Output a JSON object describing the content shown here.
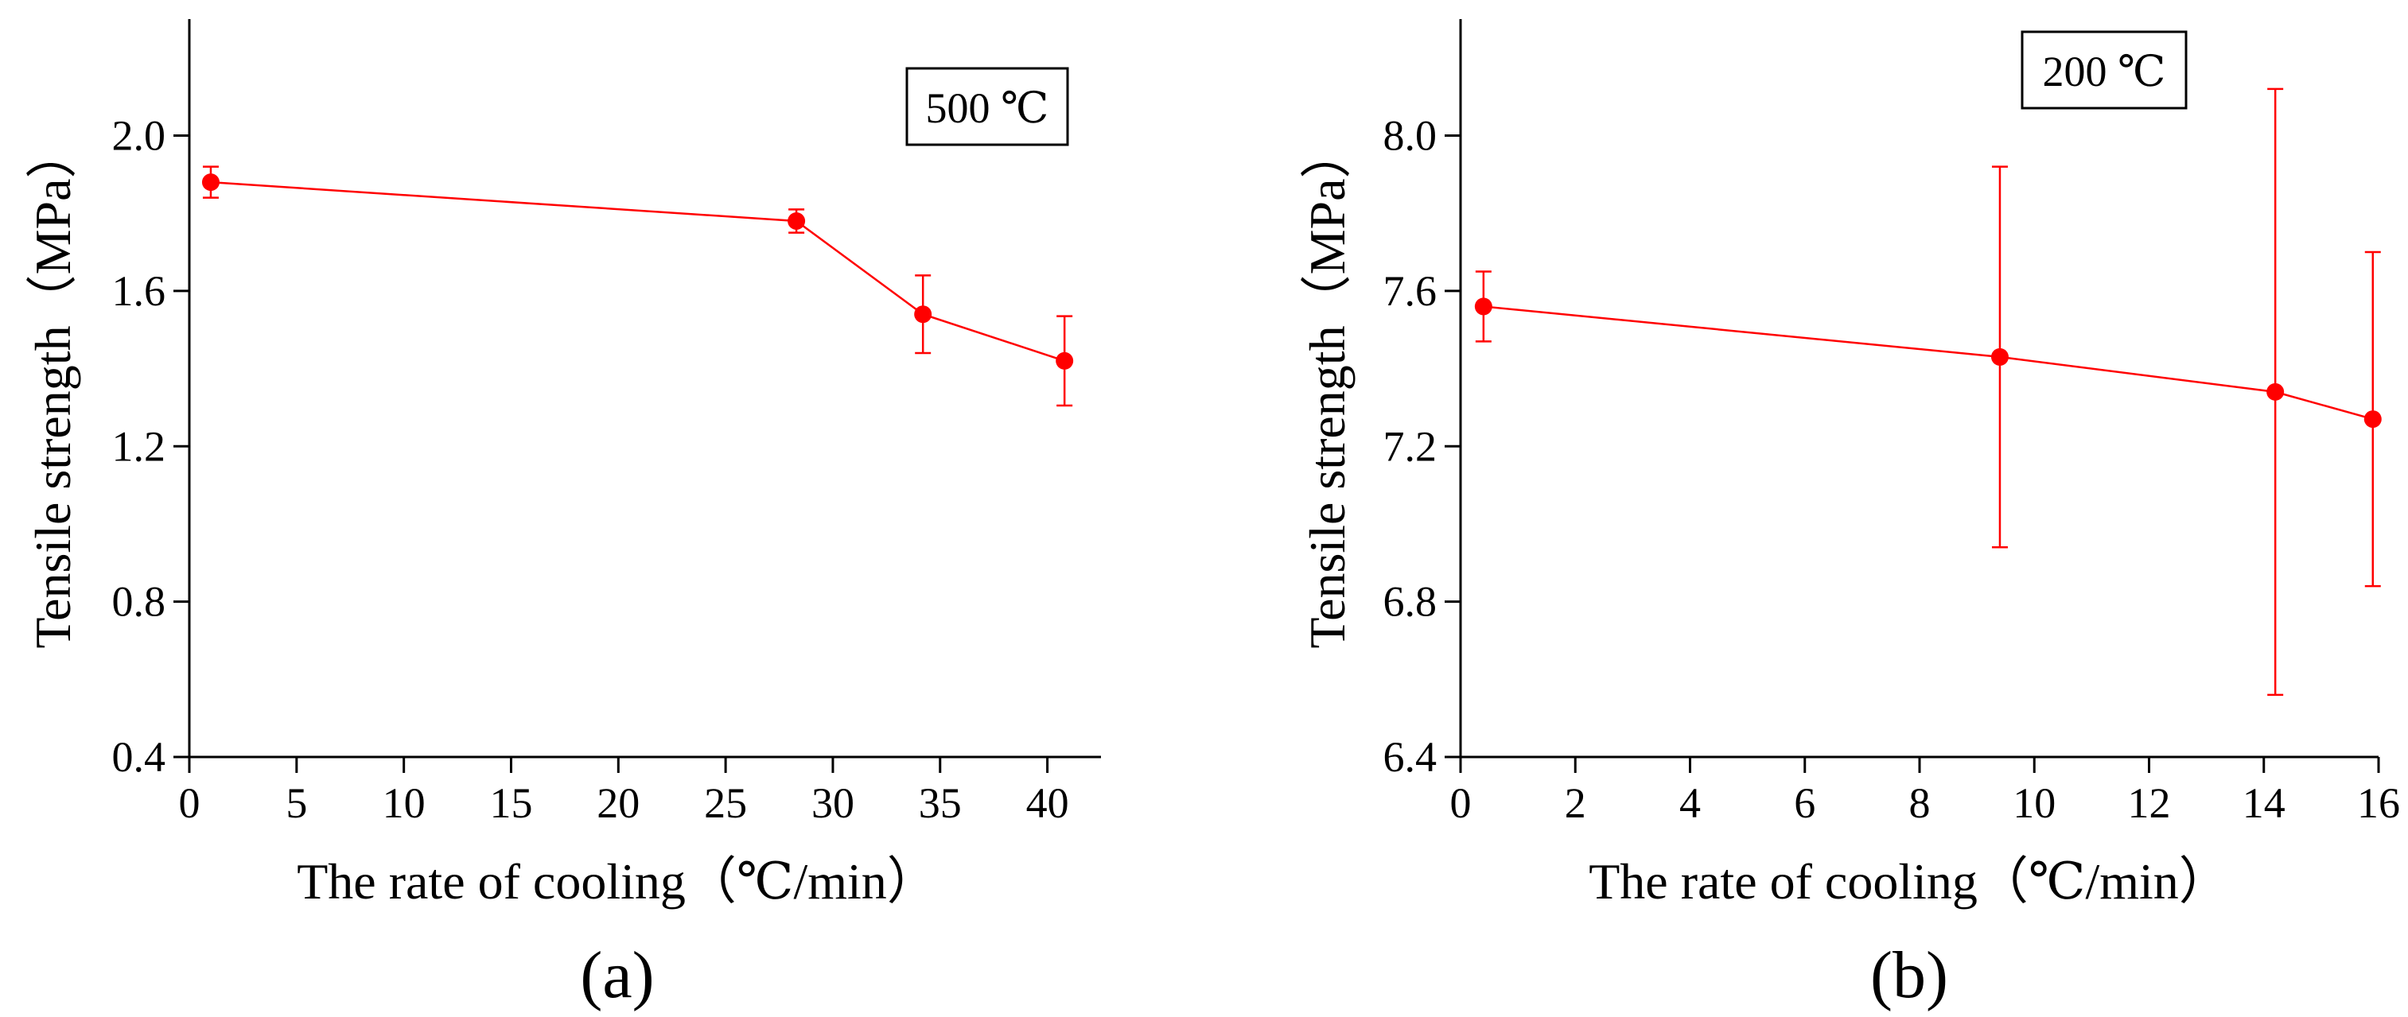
{
  "chart_data": [
    {
      "type": "line",
      "panel_label": "(a)",
      "annotation": "500 ℃",
      "xlabel": "The rate of cooling（℃/min）",
      "ylabel": "Tensile strength（MPa）",
      "xlim": [
        0,
        42.5
      ],
      "ylim": [
        0.4,
        2.3
      ],
      "xticks": [
        0,
        5,
        10,
        15,
        20,
        25,
        30,
        35,
        40
      ],
      "yticks": [
        0.4,
        0.8,
        1.2,
        1.6,
        2.0
      ],
      "ytick_labels": [
        "0.4",
        "0.8",
        "1.2",
        "1.6",
        "2.0"
      ],
      "series": [
        {
          "name": "500 ℃",
          "color": "#ff0000",
          "points": [
            {
              "x": 1.0,
              "y": 1.88,
              "err": 0.04
            },
            {
              "x": 28.3,
              "y": 1.78,
              "err": 0.03
            },
            {
              "x": 34.2,
              "y": 1.54,
              "err": 0.1
            },
            {
              "x": 40.8,
              "y": 1.42,
              "err": 0.115
            }
          ]
        }
      ]
    },
    {
      "type": "line",
      "panel_label": "(b)",
      "annotation": "200 ℃",
      "xlabel": "The rate of cooling（℃/min）",
      "ylabel": "Tensile strength（MPa）",
      "xlim": [
        0,
        16
      ],
      "ylim": [
        6.4,
        8.3
      ],
      "xticks": [
        0,
        2,
        4,
        6,
        8,
        10,
        12,
        14,
        16
      ],
      "yticks": [
        6.4,
        6.8,
        7.2,
        7.6,
        8.0
      ],
      "ytick_labels": [
        "6.4",
        "6.8",
        "7.2",
        "7.6",
        "8.0"
      ],
      "series": [
        {
          "name": "200 ℃",
          "color": "#ff0000",
          "points": [
            {
              "x": 0.4,
              "y": 7.56,
              "err": 0.09
            },
            {
              "x": 9.4,
              "y": 7.43,
              "err": 0.49
            },
            {
              "x": 14.2,
              "y": 7.34,
              "err": 0.78
            },
            {
              "x": 15.9,
              "y": 7.27,
              "err": 0.43
            }
          ]
        }
      ]
    }
  ]
}
